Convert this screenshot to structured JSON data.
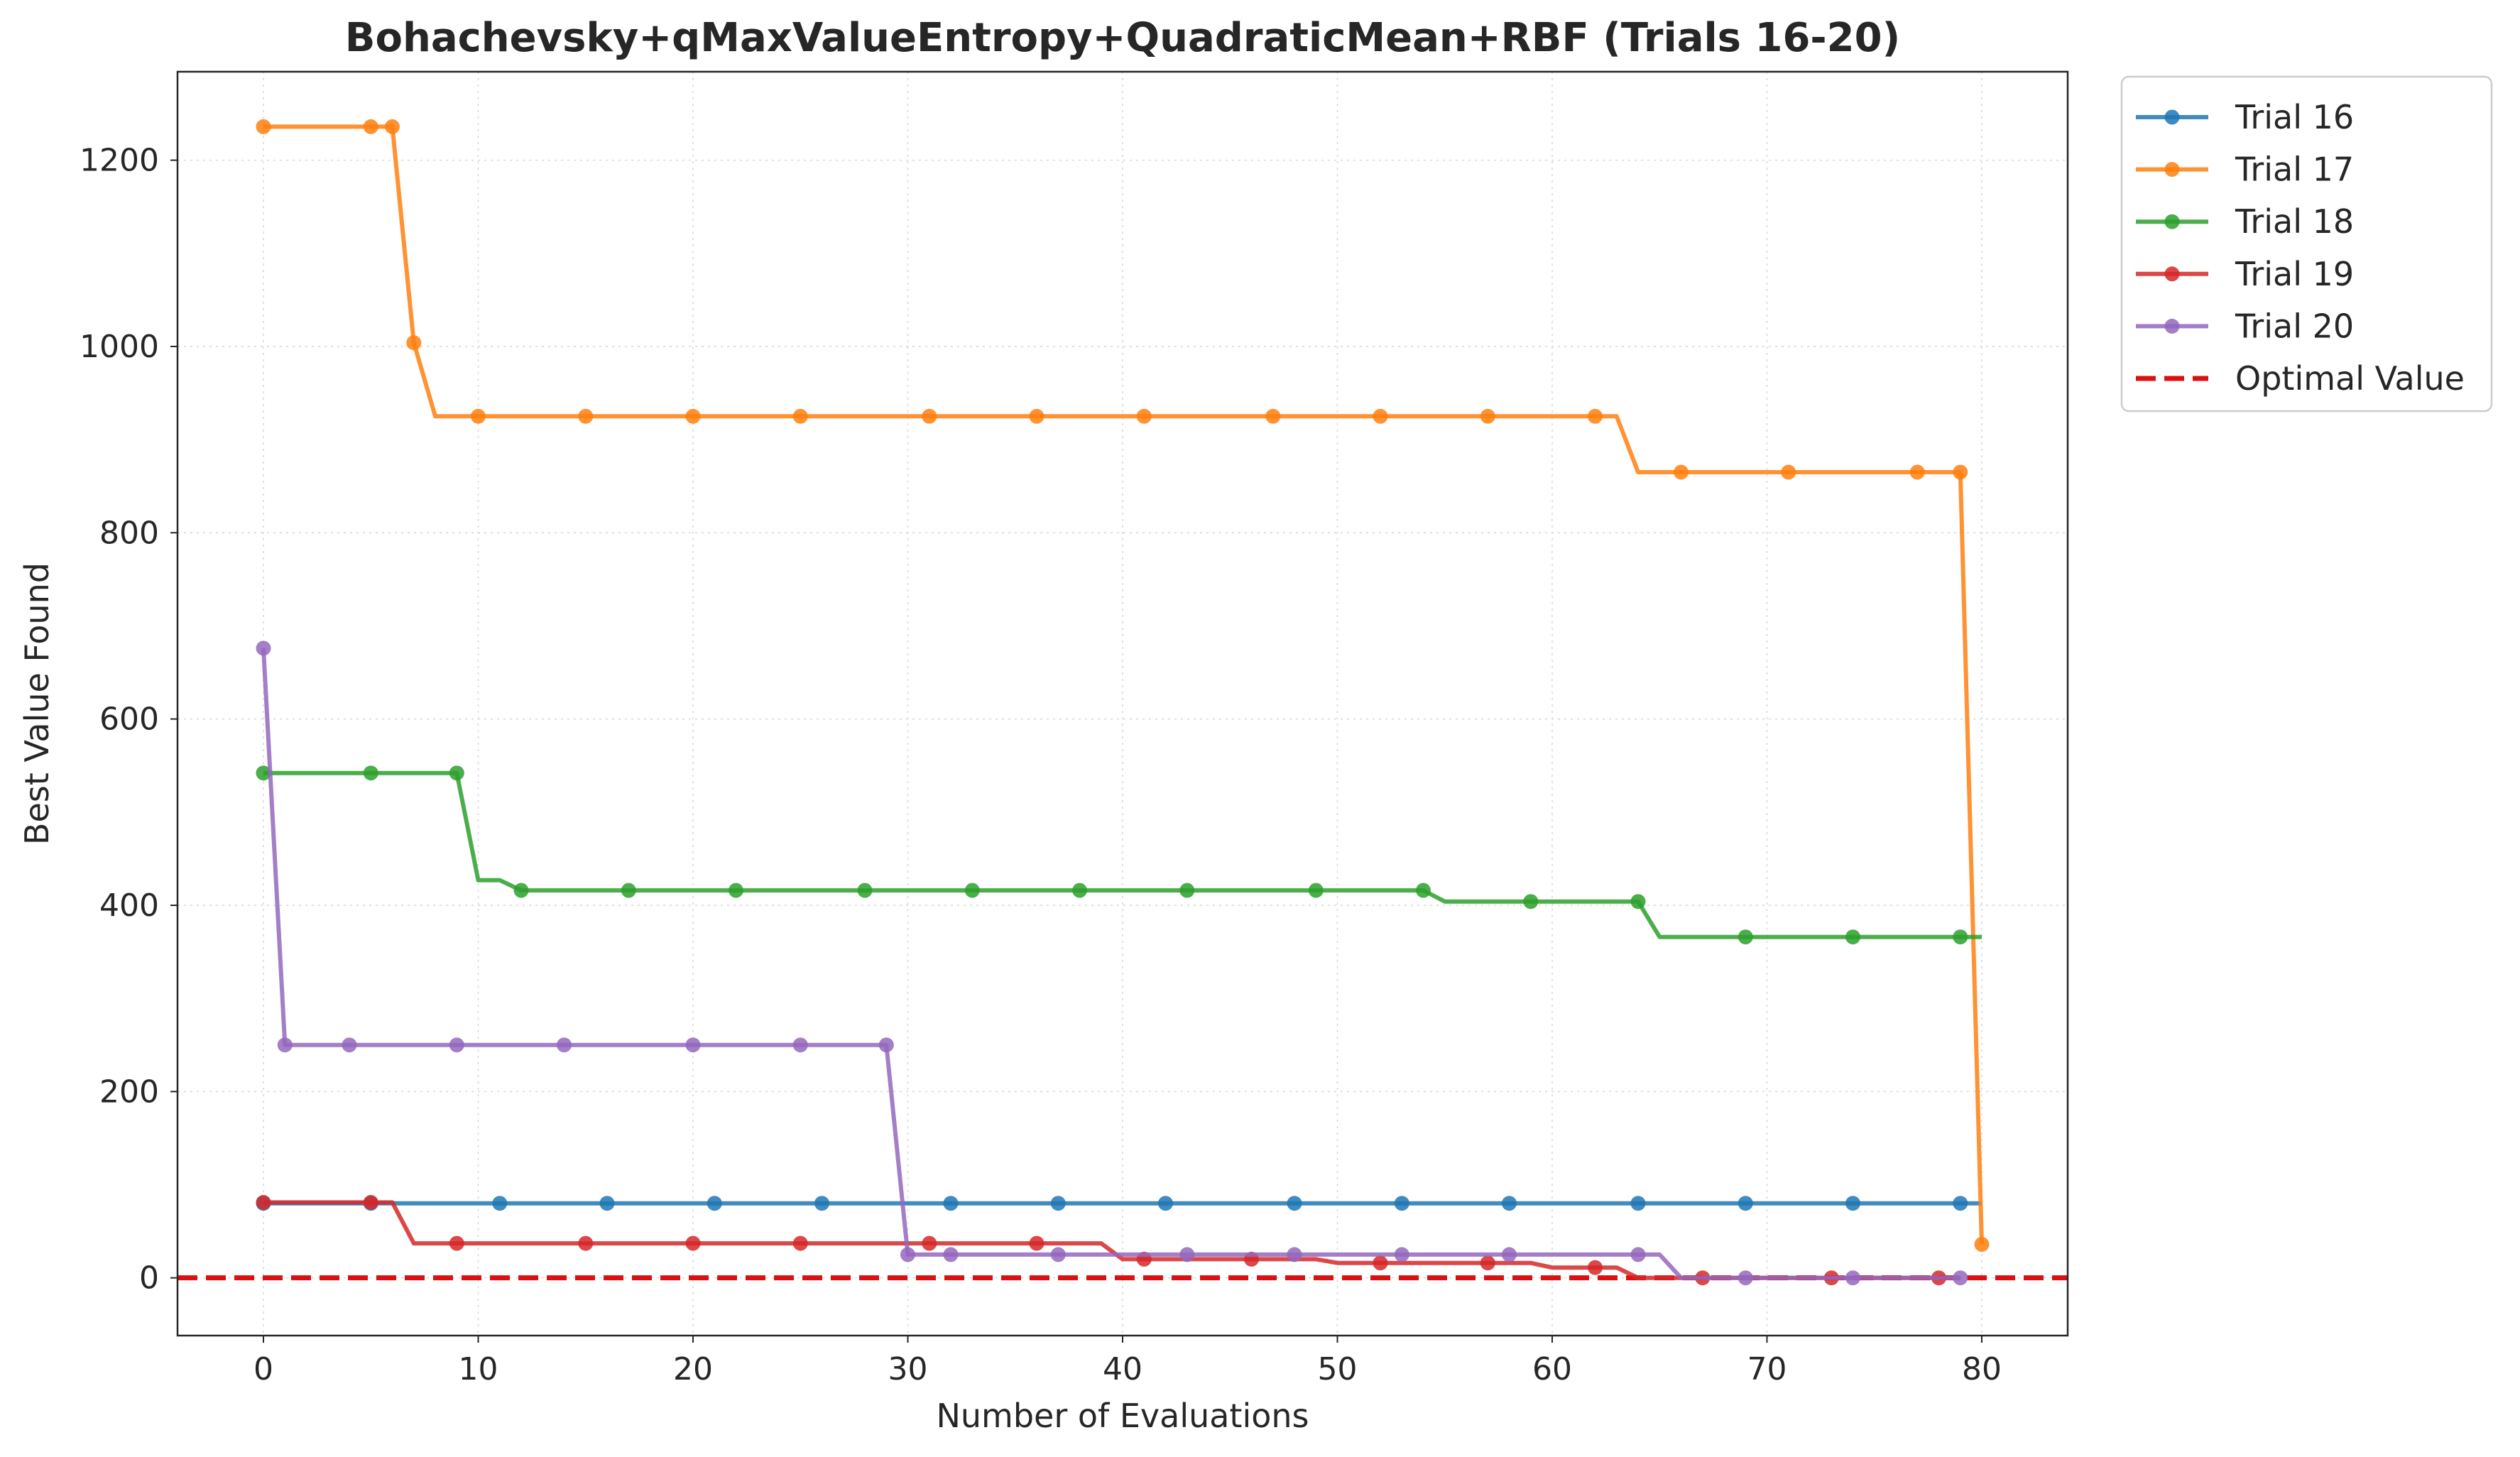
{
  "chart_data": {
    "type": "line",
    "title": "Bohachevsky+qMaxValueEntropy+QuadraticMean+RBF (Trials 16-20)",
    "xlabel": "Number of Evaluations",
    "ylabel": "Best Value Found",
    "xlim": [
      -4,
      84
    ],
    "ylim": [
      -62,
      1295
    ],
    "xticks": [
      0,
      10,
      20,
      30,
      40,
      50,
      60,
      70,
      80
    ],
    "yticks": [
      0,
      200,
      400,
      600,
      800,
      1000,
      1200
    ],
    "grid": true,
    "legend_position": "outside-top-right",
    "series": [
      {
        "name": "Trial 16",
        "color": "#1f77b4",
        "steps": [
          [
            0,
            80
          ],
          [
            80,
            80
          ]
        ],
        "markers": [
          0,
          5,
          11,
          16,
          21,
          26,
          32,
          37,
          42,
          48,
          53,
          58,
          64,
          69,
          74,
          79
        ]
      },
      {
        "name": "Trial 17",
        "color": "#ff7f0e",
        "steps": [
          [
            0,
            1236
          ],
          [
            6,
            1236
          ],
          [
            7,
            1004
          ],
          [
            8,
            925
          ],
          [
            62,
            925
          ],
          [
            63,
            925
          ],
          [
            64,
            865
          ],
          [
            79,
            865
          ],
          [
            80,
            36
          ]
        ],
        "markers": [
          0,
          5,
          6,
          7,
          10,
          15,
          20,
          25,
          31,
          36,
          41,
          47,
          52,
          57,
          62,
          66,
          71,
          77,
          79,
          80
        ]
      },
      {
        "name": "Trial 18",
        "color": "#2ca02c",
        "steps": [
          [
            0,
            542
          ],
          [
            9,
            542
          ],
          [
            10,
            427
          ],
          [
            11,
            427
          ],
          [
            12,
            416
          ],
          [
            54,
            416
          ],
          [
            55,
            404
          ],
          [
            64,
            404
          ],
          [
            65,
            366
          ],
          [
            80,
            366
          ]
        ],
        "markers": [
          0,
          5,
          9,
          12,
          17,
          22,
          28,
          33,
          38,
          43,
          49,
          54,
          59,
          64,
          69,
          74,
          79
        ]
      },
      {
        "name": "Trial 19",
        "color": "#d62728",
        "steps": [
          [
            0,
            81
          ],
          [
            6,
            81
          ],
          [
            7,
            37
          ],
          [
            39,
            37
          ],
          [
            40,
            20
          ],
          [
            49,
            20
          ],
          [
            50,
            16
          ],
          [
            59,
            16
          ],
          [
            60,
            11
          ],
          [
            63,
            11
          ],
          [
            64,
            0
          ],
          [
            79,
            0
          ]
        ],
        "markers": [
          0,
          5,
          9,
          15,
          20,
          25,
          31,
          36,
          41,
          46,
          52,
          57,
          62,
          67,
          73,
          78
        ]
      },
      {
        "name": "Trial 20",
        "color": "#9467bd",
        "steps": [
          [
            0,
            676
          ],
          [
            1,
            250
          ],
          [
            29,
            250
          ],
          [
            30,
            25
          ],
          [
            65,
            25
          ],
          [
            66,
            0
          ],
          [
            79,
            0
          ]
        ],
        "markers": [
          0,
          1,
          4,
          9,
          14,
          20,
          25,
          29,
          30,
          32,
          37,
          43,
          48,
          53,
          58,
          64,
          69,
          74,
          79
        ]
      }
    ],
    "reference_line": {
      "name": "Optimal Value",
      "y": 0,
      "color": "#dc1010",
      "style": "dashed"
    }
  }
}
